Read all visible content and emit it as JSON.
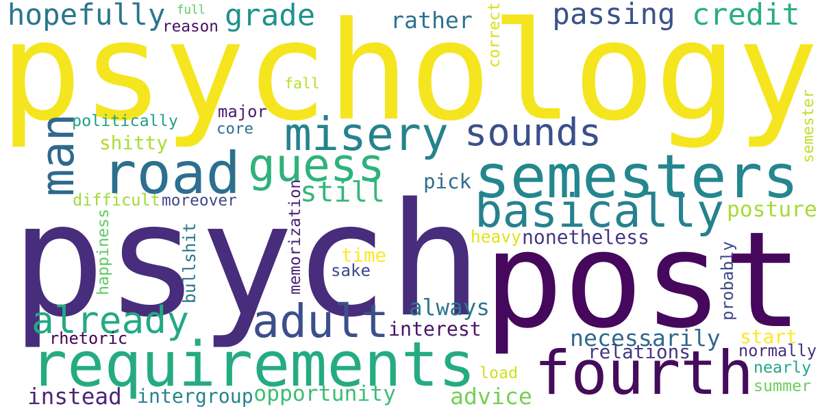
{
  "colors": {
    "background": "#ffffff",
    "palette": [
      "#440154",
      "#472c7a",
      "#3b518b",
      "#2c718e",
      "#21908d",
      "#27ad81",
      "#5cc863",
      "#aadc32",
      "#fde725"
    ]
  },
  "words": [
    {
      "text": "psychology",
      "color": "#f5e51f"
    },
    {
      "text": "psych",
      "color": "#472d7b"
    },
    {
      "text": "post",
      "color": "#46085c"
    },
    {
      "text": "requirements",
      "color": "#25ab82"
    },
    {
      "text": "fourth",
      "color": "#440c5a"
    },
    {
      "text": "semesters",
      "color": "#24868e"
    },
    {
      "text": "road",
      "color": "#2c6f8e"
    },
    {
      "text": "misery",
      "color": "#25838e"
    },
    {
      "text": "sounds",
      "color": "#3b4f8a"
    },
    {
      "text": "guess",
      "color": "#2eb27c"
    },
    {
      "text": "basically",
      "color": "#26818e"
    },
    {
      "text": "adult",
      "color": "#3c4f8a"
    },
    {
      "text": "already",
      "color": "#23a983"
    },
    {
      "text": "man",
      "color": "#30688e"
    },
    {
      "text": "hopefully",
      "color": "#2a768e"
    },
    {
      "text": "grade",
      "color": "#20928c"
    },
    {
      "text": "passing",
      "color": "#3a528b"
    },
    {
      "text": "credit",
      "color": "#29af7f"
    },
    {
      "text": "rather",
      "color": "#2c728e"
    },
    {
      "text": "full",
      "color": "#5cc863"
    },
    {
      "text": "reason",
      "color": "#471063"
    },
    {
      "text": "correct",
      "color": "#d5e21a"
    },
    {
      "text": "fall",
      "color": "#b5de2b"
    },
    {
      "text": "major",
      "color": "#481a6c"
    },
    {
      "text": "core",
      "color": "#2d708e"
    },
    {
      "text": "politically",
      "color": "#1fa187"
    },
    {
      "text": "shitty",
      "color": "#addc30"
    },
    {
      "text": "still",
      "color": "#34b679"
    },
    {
      "text": "pick",
      "color": "#2f6c8e"
    },
    {
      "text": "difficult",
      "color": "#a2da37"
    },
    {
      "text": "moreover",
      "color": "#404688"
    },
    {
      "text": "memorization",
      "color": "#482173"
    },
    {
      "text": "posture",
      "color": "#a8db34"
    },
    {
      "text": "semester",
      "color": "#c0df25"
    },
    {
      "text": "happiness",
      "color": "#5ec962"
    },
    {
      "text": "bullshit",
      "color": "#2a788e"
    },
    {
      "text": "heavy",
      "color": "#dfe318"
    },
    {
      "text": "nonetheless",
      "color": "#453882"
    },
    {
      "text": "time",
      "color": "#fde725"
    },
    {
      "text": "sake",
      "color": "#3e4989"
    },
    {
      "text": "probably",
      "color": "#3f4889"
    },
    {
      "text": "always",
      "color": "#2a778e"
    },
    {
      "text": "interest",
      "color": "#481467"
    },
    {
      "text": "rhetoric",
      "color": "#440154"
    },
    {
      "text": "necessarily",
      "color": "#30678d"
    },
    {
      "text": "start",
      "color": "#fde725"
    },
    {
      "text": "relations",
      "color": "#453781"
    },
    {
      "text": "normally",
      "color": "#46307e"
    },
    {
      "text": "nearly",
      "color": "#22a785"
    },
    {
      "text": "load",
      "color": "#cde11d"
    },
    {
      "text": "instead",
      "color": "#482677"
    },
    {
      "text": "intergroup",
      "color": "#26828e"
    },
    {
      "text": "opportunity",
      "color": "#3dbc74"
    },
    {
      "text": "advice",
      "color": "#75d054"
    },
    {
      "text": "summer",
      "color": "#6ccd5a"
    }
  ]
}
